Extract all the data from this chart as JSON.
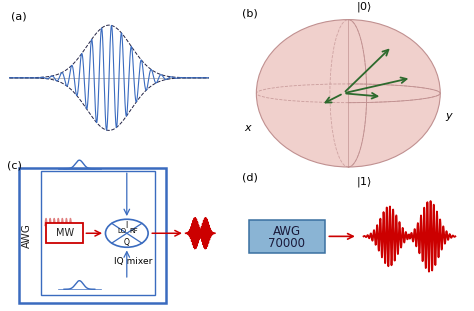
{
  "bg_color": "#ffffff",
  "label_a": "(a)",
  "label_b": "(b)",
  "label_c": "(c)",
  "label_d": "(d)",
  "blue_color": "#3a6bbf",
  "red_color": "#cc0000",
  "light_blue": "#AED6F1",
  "green_color": "#2d6a2d",
  "pink_sphere_face": "#f0d0cc",
  "pink_sphere_edge": "#c09090",
  "awg_box_color": "#8ab4d4",
  "label_fontsize": 8,
  "text_fontsize": 7,
  "panel_a_sigma": 0.22,
  "panel_a_freq": 10,
  "panel_a_npts": 2000
}
